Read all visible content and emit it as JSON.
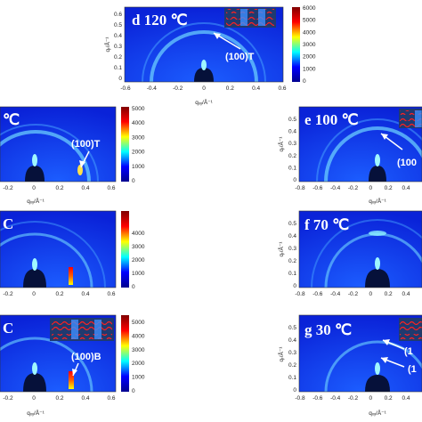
{
  "panels": {
    "d": {
      "title": "d 120 ℃",
      "annotation": "(100)T",
      "xticks": [
        "-0.6",
        "-0.4",
        "-0.2",
        "0",
        "0.2",
        "0.4",
        "0.6"
      ],
      "yticks": [
        "0.6",
        "0.5",
        "0.4",
        "0.3",
        "0.2",
        "0.1",
        "0"
      ],
      "cbar": [
        "6000",
        "5000",
        "4000",
        "3000",
        "2000",
        "1000",
        "0"
      ]
    },
    "a": {
      "title": "℃",
      "annotation": "(100)T",
      "xticks": [
        "-0.2",
        "0",
        "0.2",
        "0.4",
        "0.6"
      ],
      "cbar": [
        "5000",
        "4000",
        "3000",
        "2000",
        "1000",
        "0"
      ]
    },
    "b": {
      "title": "C",
      "xticks": [
        "-0.2",
        "0",
        "0.2",
        "0.4",
        "0.6"
      ],
      "cbar": [
        "4000",
        "3000",
        "2000",
        "1000",
        "0"
      ]
    },
    "c": {
      "title": "C",
      "annotation": "(100)B",
      "xticks": [
        "-0.2",
        "0",
        "0.2",
        "0.4",
        "0.6"
      ],
      "cbar": [
        "5000",
        "4000",
        "3000",
        "2000",
        "1000",
        "0"
      ]
    },
    "e": {
      "title": "e 100 ℃",
      "annotation": "(100",
      "xticks": [
        "-0.8",
        "-0.6",
        "-0.4",
        "-0.2",
        "0",
        "0.2",
        "0.4"
      ],
      "yticks": [
        "0.5",
        "0.4",
        "0.3",
        "0.2",
        "0.1",
        "0"
      ]
    },
    "f": {
      "title": "f 70 ℃",
      "xticks": [
        "-0.8",
        "-0.6",
        "-0.4",
        "-0.2",
        "0",
        "0.2",
        "0.4"
      ],
      "yticks": [
        "0.5",
        "0.4",
        "0.3",
        "0.2",
        "0.1",
        "0"
      ]
    },
    "g": {
      "title": "g 30 ℃",
      "annotation_top": "(1",
      "annotation_bottom": "(1",
      "xticks": [
        "-0.8",
        "-0.6",
        "-0.4",
        "-0.2",
        "0",
        "0.2",
        "0.4"
      ],
      "yticks": [
        "0.5",
        "0.4",
        "0.3",
        "0.2",
        "0.1",
        "0"
      ]
    }
  },
  "axis": {
    "x_label": "qₓᵧ/Å⁻¹",
    "y_label": "qᵣ/Å⁻¹"
  },
  "colors": {
    "background": "#0a28e6",
    "ring": "#6fd6ff",
    "beam": "#06113a"
  }
}
